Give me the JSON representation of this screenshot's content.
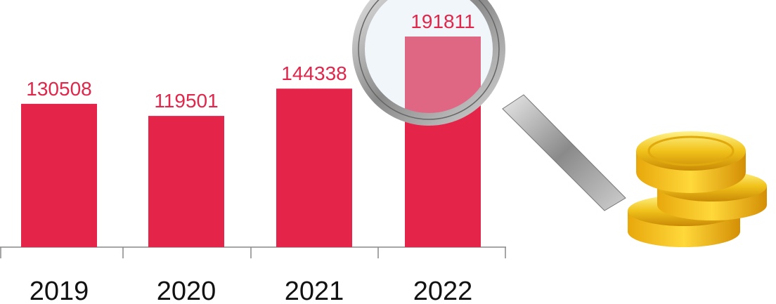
{
  "chart_data": {
    "type": "bar",
    "categories": [
      "2019",
      "2020",
      "2021",
      "2022"
    ],
    "values": [
      130508,
      119501,
      144338,
      191811
    ],
    "color": "#e5244a"
  }
}
